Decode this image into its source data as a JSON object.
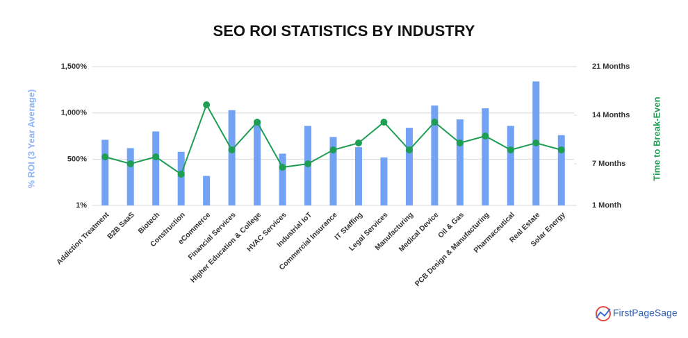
{
  "chart_data": {
    "type": "bar",
    "title": "SEO ROI STATISTICS BY INDUSTRY",
    "y_label": "% ROI (3 Year Average)",
    "y2_label": "Time to Break-Even",
    "brand": "FirstPageSage",
    "categories": [
      "Addiction Treatment",
      "B2B SaaS",
      "Biotech",
      "Construction",
      "eCommerce",
      "Financial Services",
      "Higher Education & College",
      "HVAC Services",
      "Industrial IoT",
      "Commercial Insurance",
      "IT Staffing",
      "Legal Services",
      "Manufacturing",
      "Medical Device",
      "Oil & Gas",
      "PCB Design & Manufacturing",
      "Pharmaceutical",
      "Real Estate",
      "Solar Energy"
    ],
    "series": [
      {
        "color": "#73a2f4",
        "values": [
          710,
          620,
          800,
          580,
          320,
          1030,
          920,
          560,
          860,
          740,
          630,
          520,
          840,
          1080,
          930,
          1050,
          860,
          1340,
          760
        ]
      },
      {
        "type": "line",
        "axis": "y2",
        "color": "#1e9e52",
        "values": [
          8,
          7,
          8,
          5.5,
          15.5,
          9,
          13,
          6.5,
          7,
          9,
          10,
          13,
          9,
          13,
          10,
          11,
          9,
          10,
          9
        ]
      }
    ],
    "ylim": [
      1,
      1500
    ],
    "yticks": [
      {
        "value": 1,
        "label": "1%"
      },
      {
        "value": 500,
        "label": "500%"
      },
      {
        "value": 1000,
        "label": "1,000%"
      },
      {
        "value": 1500,
        "label": "1,500%"
      }
    ],
    "y2lim": [
      1,
      21
    ],
    "y2ticks": [
      {
        "value": 1,
        "label": "1 Month"
      },
      {
        "value": 7,
        "label": "7 Months"
      },
      {
        "value": 14,
        "label": "14 Months"
      },
      {
        "value": 21,
        "label": "21 Months"
      }
    ],
    "grid": true
  }
}
